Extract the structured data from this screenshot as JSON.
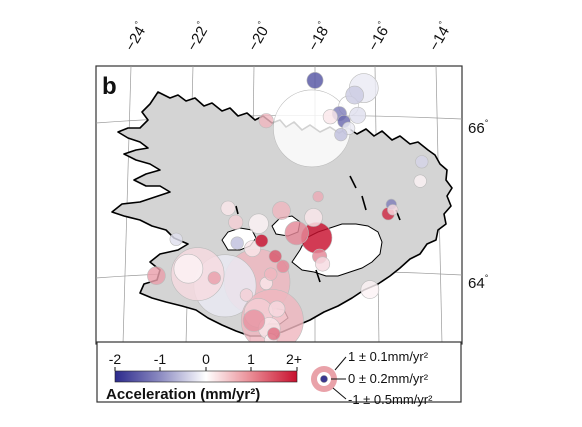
{
  "panel_label": "b",
  "longitude_labels": [
    {
      "value": "−24",
      "deg": "°"
    },
    {
      "value": "−22",
      "deg": "°"
    },
    {
      "value": "−20",
      "deg": "°"
    },
    {
      "value": "−18",
      "deg": "°"
    },
    {
      "value": "−16",
      "deg": "°"
    },
    {
      "value": "−14",
      "deg": "°"
    }
  ],
  "latitude_labels": [
    {
      "value": "66",
      "deg": "°"
    },
    {
      "value": "64",
      "deg": "°"
    }
  ],
  "colorbar": {
    "ticks": [
      "-2",
      "-1",
      "0",
      "1",
      "2+"
    ],
    "title": "Acceleration (mm/yr²)",
    "min": -2,
    "max": 2,
    "colors": {
      "negative": "#2c2a8c",
      "zero": "#ffffff",
      "positive": "#c8102e"
    }
  },
  "size_legend": [
    {
      "label": "1 ± 0.1mm/yr²"
    },
    {
      "label": "0 ± 0.2mm/yr²"
    },
    {
      "label": "-1 ± 0.5mm/yr²"
    }
  ],
  "colors": {
    "land": "#d4d4d4",
    "glacier": "#ffffff",
    "coast": "#000000",
    "grid": "#9a9a9a"
  },
  "stations": [
    {
      "acc": 0.0,
      "unc": 0.38,
      "lon": -18.1,
      "lat": 65.93
    },
    {
      "acc": -1.6,
      "unc": 0.05,
      "lon": -18.0,
      "lat": 66.55
    },
    {
      "acc": -0.2,
      "unc": 0.12,
      "lon": -16.4,
      "lat": 66.45
    },
    {
      "acc": -0.5,
      "unc": 0.06,
      "lon": -16.7,
      "lat": 66.36
    },
    {
      "acc": 0.0,
      "unc": 0.07,
      "lon": -16.9,
      "lat": 66.22
    },
    {
      "acc": -1.2,
      "unc": 0.04,
      "lon": -17.2,
      "lat": 66.12
    },
    {
      "acc": -0.3,
      "unc": 0.05,
      "lon": -16.6,
      "lat": 66.1
    },
    {
      "acc": 0.2,
      "unc": 0.04,
      "lon": -17.5,
      "lat": 66.08
    },
    {
      "acc": -1.4,
      "unc": 0.03,
      "lon": -17.05,
      "lat": 66.02
    },
    {
      "acc": -0.2,
      "unc": 0.03,
      "lon": -16.9,
      "lat": 65.93
    },
    {
      "acc": -0.6,
      "unc": 0.03,
      "lon": -17.15,
      "lat": 65.85
    },
    {
      "acc": 0.6,
      "unc": 0.04,
      "lon": -19.6,
      "lat": 66.03
    },
    {
      "acc": -0.4,
      "unc": 0.03,
      "lon": -14.5,
      "lat": 65.5
    },
    {
      "acc": 0.1,
      "unc": 0.03,
      "lon": -14.55,
      "lat": 65.25
    },
    {
      "acc": 0.7,
      "unc": 0.02,
      "lon": -17.9,
      "lat": 65.05
    },
    {
      "acc": -1.2,
      "unc": 0.02,
      "lon": -15.5,
      "lat": 64.95
    },
    {
      "acc": 0.3,
      "unc": 0.02,
      "lon": -15.45,
      "lat": 64.88
    },
    {
      "acc": 1.8,
      "unc": 0.03,
      "lon": -15.6,
      "lat": 64.83
    },
    {
      "acc": 0.6,
      "unc": 0.06,
      "lon": -19.1,
      "lat": 64.87
    },
    {
      "acc": 0.2,
      "unc": 0.06,
      "lon": -18.05,
      "lat": 64.78
    },
    {
      "acc": 1.0,
      "unc": 0.09,
      "lon": -18.6,
      "lat": 64.58
    },
    {
      "acc": 2.0,
      "unc": 0.13,
      "lon": -17.95,
      "lat": 64.52
    },
    {
      "acc": 1.0,
      "unc": 0.04,
      "lon": -17.85,
      "lat": 64.28
    },
    {
      "acc": 0.3,
      "unc": 0.04,
      "lon": -17.75,
      "lat": 64.18
    },
    {
      "acc": 0.1,
      "unc": 0.07,
      "lon": -19.85,
      "lat": 64.7
    },
    {
      "acc": 2.0,
      "unc": 0.03,
      "lon": -19.75,
      "lat": 64.48
    },
    {
      "acc": -0.6,
      "unc": 0.03,
      "lon": -20.55,
      "lat": 64.45
    },
    {
      "acc": 0.2,
      "unc": 0.05,
      "lon": -20.05,
      "lat": 64.38
    },
    {
      "acc": 1.4,
      "unc": 0.03,
      "lon": -19.3,
      "lat": 64.28
    },
    {
      "acc": 1.0,
      "unc": 0.03,
      "lon": -19.05,
      "lat": 64.15
    },
    {
      "acc": 0.3,
      "unc": 0.25,
      "lon": -21.85,
      "lat": 64.05
    },
    {
      "acc": 0.1,
      "unc": 0.12,
      "lon": -22.15,
      "lat": 64.12
    },
    {
      "acc": -0.2,
      "unc": 0.3,
      "lon": -20.95,
      "lat": 63.9
    },
    {
      "acc": 0.6,
      "unc": 0.32,
      "lon": -19.9,
      "lat": 63.95
    },
    {
      "acc": 0.2,
      "unc": 0.03,
      "lon": -19.6,
      "lat": 63.93
    },
    {
      "acc": 0.6,
      "unc": 0.03,
      "lon": -19.45,
      "lat": 64.05
    },
    {
      "acc": 0.8,
      "unc": 0.03,
      "lon": -21.3,
      "lat": 64.0
    },
    {
      "acc": 0.4,
      "unc": 0.03,
      "lon": -20.25,
      "lat": 63.78
    },
    {
      "acc": 0.6,
      "unc": 0.3,
      "lon": -19.4,
      "lat": 63.45
    },
    {
      "acc": 0.4,
      "unc": 0.12,
      "lon": -19.85,
      "lat": 63.55
    },
    {
      "acc": 0.2,
      "unc": 0.08,
      "lon": -19.5,
      "lat": 63.35
    },
    {
      "acc": 0.9,
      "unc": 0.08,
      "lon": -20.0,
      "lat": 63.45
    },
    {
      "acc": 0.3,
      "unc": 0.05,
      "lon": -19.25,
      "lat": 63.6
    },
    {
      "acc": 0.1,
      "unc": 0.03,
      "lon": -19.45,
      "lat": 63.2
    },
    {
      "acc": 1.2,
      "unc": 0.03,
      "lon": -19.35,
      "lat": 63.28
    },
    {
      "acc": 0.8,
      "unc": 0.06,
      "lon": -23.2,
      "lat": 64.03
    },
    {
      "acc": -0.3,
      "unc": 0.03,
      "lon": -22.55,
      "lat": 64.5
    },
    {
      "acc": 0.1,
      "unc": 0.06,
      "lon": -16.2,
      "lat": 63.85
    },
    {
      "acc": 0.2,
      "unc": 0.04,
      "lon": -20.85,
      "lat": 64.9
    },
    {
      "acc": 0.4,
      "unc": 0.04,
      "lon": -20.6,
      "lat": 64.72
    }
  ]
}
